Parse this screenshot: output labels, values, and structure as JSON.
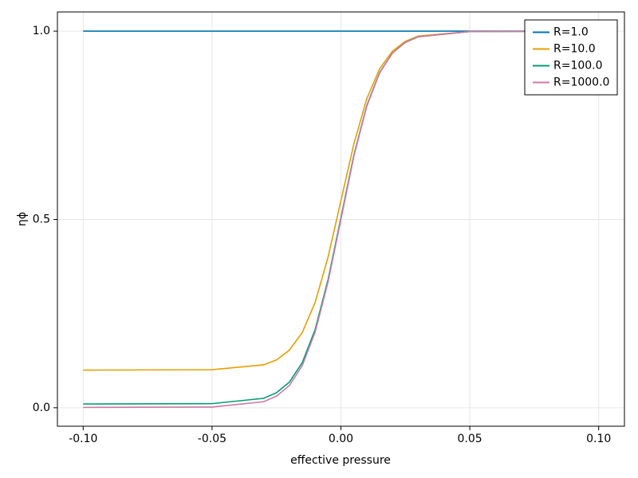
{
  "chart_data": {
    "type": "line",
    "xlabel": "effective pressure",
    "ylabel": "ηϕ",
    "x": [
      -0.1,
      -0.05,
      -0.03,
      -0.025,
      -0.02,
      -0.015,
      -0.01,
      -0.005,
      0,
      0.005,
      0.01,
      0.015,
      0.02,
      0.025,
      0.03,
      0.05,
      0.1
    ],
    "series": [
      {
        "name": "R=1.0",
        "color": "#0072b2",
        "values": [
          1,
          1,
          1,
          1,
          1,
          1,
          1,
          1,
          1,
          1,
          1,
          1,
          1,
          1,
          1,
          1,
          1
        ]
      },
      {
        "name": "R=10.0",
        "color": "#e69f00",
        "values": [
          0.1,
          0.101,
          0.114,
          0.127,
          0.153,
          0.2,
          0.28,
          0.4,
          0.55,
          0.7,
          0.82,
          0.9,
          0.947,
          0.973,
          0.987,
          0.999,
          1
        ]
      },
      {
        "name": "R=100.0",
        "color": "#009e73",
        "values": [
          0.01,
          0.011,
          0.025,
          0.04,
          0.068,
          0.12,
          0.208,
          0.34,
          0.505,
          0.67,
          0.802,
          0.89,
          0.942,
          0.97,
          0.985,
          0.999,
          1
        ]
      },
      {
        "name": "R=1000.0",
        "color": "#cc79a7",
        "values": [
          0.001,
          0.002,
          0.016,
          0.031,
          0.059,
          0.112,
          0.201,
          0.334,
          0.5,
          0.667,
          0.8,
          0.889,
          0.942,
          0.97,
          0.985,
          0.999,
          1
        ]
      }
    ],
    "xlim": [
      -0.11,
      0.11
    ],
    "ylim": [
      -0.049,
      1.051
    ],
    "xticks": [
      {
        "value": -0.1,
        "label": "-0.10"
      },
      {
        "value": -0.05,
        "label": "-0.05"
      },
      {
        "value": 0,
        "label": "0.00"
      },
      {
        "value": 0.05,
        "label": "0.05"
      },
      {
        "value": 0.1,
        "label": "0.10"
      }
    ],
    "yticks": [
      {
        "value": 0,
        "label": "0.0"
      },
      {
        "value": 0.5,
        "label": "0.5"
      },
      {
        "value": 1,
        "label": "1.0"
      }
    ],
    "grid": true,
    "legend": "top-right"
  }
}
